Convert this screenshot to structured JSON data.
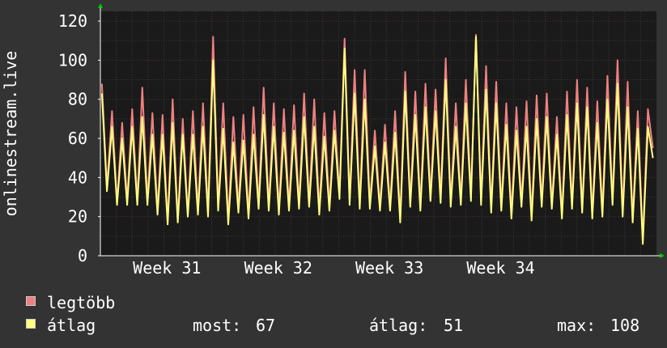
{
  "chart_data": {
    "type": "line",
    "ylabel": "onlinestream.live",
    "ylim": [
      0,
      125
    ],
    "yticks": [
      0,
      20,
      40,
      60,
      80,
      100,
      120
    ],
    "x_labels": [
      "Week 31",
      "Week 32",
      "Week 33",
      "Week 34"
    ],
    "grid": true,
    "legend_position": "bottom-left",
    "series": [
      {
        "name": "legtöbb",
        "color": "#f08080",
        "peaks": [
          88,
          74,
          68,
          75,
          86,
          73,
          72,
          80,
          70,
          74,
          78,
          112,
          78,
          71,
          72,
          76,
          86,
          78,
          75,
          77,
          83,
          80,
          73,
          74,
          111,
          95,
          95,
          64,
          67,
          74,
          94,
          84,
          88,
          85,
          101,
          78,
          90,
          113,
          97,
          89,
          78,
          76,
          79,
          82,
          83,
          71,
          84,
          90,
          86,
          79,
          92,
          100,
          89,
          74,
          75
        ],
        "troughs": [
          35,
          27,
          28,
          28,
          28,
          23,
          17,
          18,
          21,
          23,
          22,
          25,
          18,
          24,
          21,
          26,
          25,
          23,
          25,
          26,
          27,
          23,
          25,
          31,
          28,
          26,
          26,
          25,
          25,
          19,
          27,
          25,
          30,
          29,
          27,
          28,
          30,
          28,
          24,
          25,
          21,
          27,
          20,
          27,
          26,
          21,
          26,
          24,
          21,
          22,
          28,
          22,
          19,
          8,
          55
        ]
      },
      {
        "name": "átlag",
        "color": "#ffff80",
        "peaks": [
          83,
          66,
          60,
          66,
          71,
          62,
          62,
          68,
          62,
          62,
          66,
          100,
          65,
          58,
          59,
          62,
          72,
          66,
          63,
          64,
          71,
          66,
          61,
          64,
          106,
          83,
          80,
          56,
          58,
          63,
          84,
          72,
          76,
          74,
          90,
          66,
          78,
          112,
          85,
          78,
          67,
          64,
          66,
          70,
          71,
          62,
          72,
          78,
          76,
          68,
          80,
          88,
          76,
          65,
          66
        ],
        "troughs": [
          33,
          26,
          26,
          26,
          26,
          21,
          16,
          17,
          20,
          21,
          20,
          23,
          16,
          22,
          19,
          24,
          23,
          21,
          23,
          24,
          25,
          21,
          23,
          29,
          26,
          24,
          24,
          23,
          23,
          17,
          25,
          23,
          28,
          27,
          25,
          26,
          28,
          26,
          22,
          23,
          19,
          25,
          18,
          25,
          24,
          19,
          24,
          22,
          19,
          20,
          26,
          20,
          17,
          6,
          50
        ]
      }
    ],
    "stats": {
      "most_label": "most:",
      "most_value": "67",
      "atlag_label": "átlag:",
      "atlag_value": "51",
      "max_label": "max:",
      "max_value": "108"
    }
  },
  "colors": {
    "background": "#333333",
    "plot_background": "#1a1a1a",
    "grid": "#3a3a3a",
    "grid_major": "#553333",
    "axis": "#ffffff",
    "arrow": "#00cc00"
  }
}
